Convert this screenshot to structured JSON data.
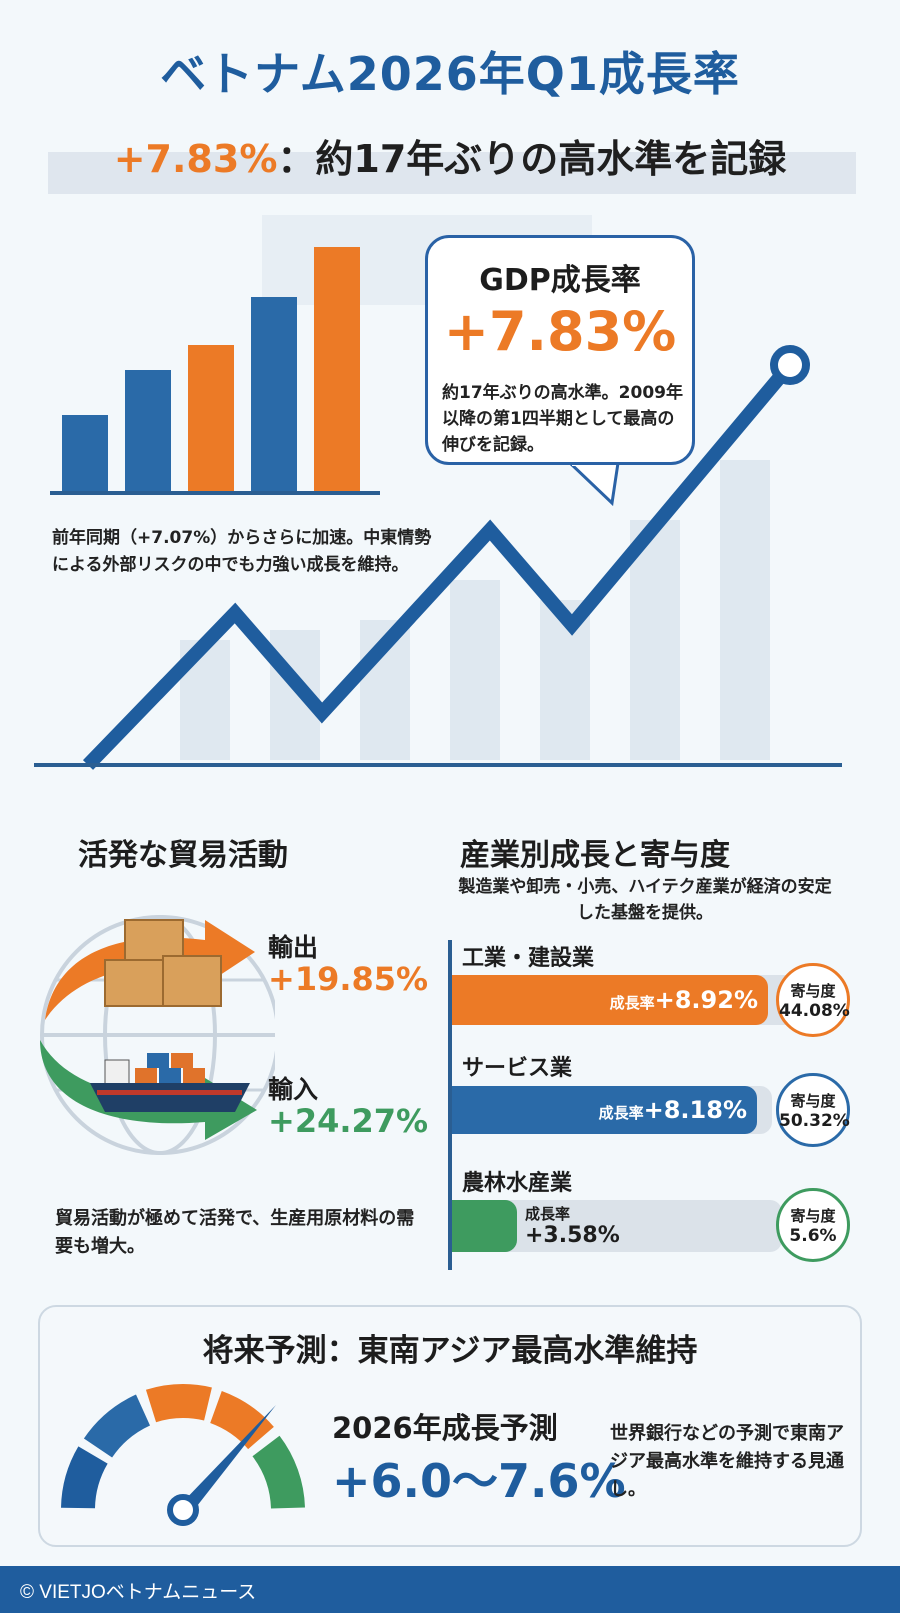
{
  "header": {
    "title": "ベトナム2026年Q1成長率",
    "subtitle_accent": "+7.83%",
    "subtitle_rest": "：約17年ぶりの高水準を記録"
  },
  "hero": {
    "caption": "前年同期（+7.07%）からさらに加速。中東情勢による外部リスクの中でも力強い成長を維持。",
    "bubble": {
      "label": "GDP成長率",
      "value": "+7.83%",
      "text": "約17年ぶりの高水準。2009年以降の第1四半期として最高の伸びを記録。"
    }
  },
  "trade": {
    "title": "活発な貿易活動",
    "export_label": "輸出",
    "export_value": "+19.85%",
    "import_label": "輸入",
    "import_value": "+24.27%",
    "note": "貿易活動が極めて活発で、生産用原材料の需要も増大。"
  },
  "industry": {
    "title": "産業別成長と寄与度",
    "subtitle": "製造業や卸売・小売、ハイテク産業が経済の安定した基盤を提供。",
    "growth_label": "成長率",
    "contrib_label": "寄与度",
    "sectors": [
      {
        "name": "工業・建設業",
        "growth": "+8.92%",
        "contribution": "44.08%",
        "color": "#ec7a26"
      },
      {
        "name": "サービス業",
        "growth": "+8.18%",
        "contribution": "50.32%",
        "color": "#2a6aa8"
      },
      {
        "name": "農林水産業",
        "growth": "+3.58%",
        "contribution": "5.6%",
        "color": "#3e9b5f"
      }
    ]
  },
  "forecast": {
    "title": "将来予測：東南アジア最高水準維持",
    "label": "2026年成長予測",
    "value": "+6.0〜7.6%",
    "note": "世界銀行などの予測で東南アジア最高水準を維持する見通し。"
  },
  "footer": {
    "credit": "© VIETJOベトナムニュース"
  },
  "colors": {
    "blue": "#1f5d9e",
    "orange": "#ec7a26",
    "green": "#3e9b5f"
  }
}
